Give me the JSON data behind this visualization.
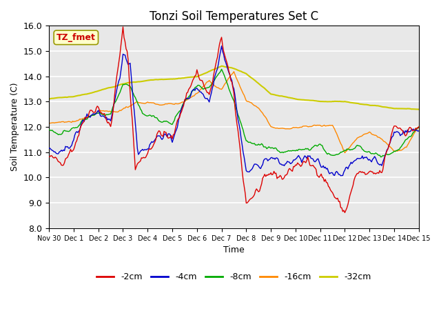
{
  "title": "Tonzi Soil Temperatures Set C",
  "xlabel": "Time",
  "ylabel": "Soil Temperature (C)",
  "ylim": [
    8.0,
    16.0
  ],
  "yticks": [
    8.0,
    9.0,
    10.0,
    11.0,
    12.0,
    13.0,
    14.0,
    15.0,
    16.0
  ],
  "xtick_labels": [
    "Nov 30",
    "Dec 1",
    "Dec 2",
    "Dec 3",
    "Dec 4",
    "Dec 5",
    "Dec 6",
    "Dec 7",
    "Dec 8",
    "Dec 9",
    "Dec 10",
    "Dec 11",
    "Dec 12",
    "Dec 13",
    "Dec 14",
    "Dec 15"
  ],
  "series_colors": [
    "#dd0000",
    "#0000cc",
    "#00aa00",
    "#ff8800",
    "#cccc00"
  ],
  "series_labels": [
    "-2cm",
    "-4cm",
    "-8cm",
    "-16cm",
    "-32cm"
  ],
  "legend_label": "TZ_fmet",
  "background_color": "#e8e8e8",
  "n_points": 361,
  "xp_2cm": [
    0,
    0.5,
    1,
    1.5,
    2,
    2.5,
    3,
    3.2,
    3.5,
    4,
    4.5,
    5,
    5.5,
    6,
    6.5,
    7,
    7.5,
    8,
    8.5,
    9,
    9.5,
    10,
    10.5,
    11,
    11.5,
    12,
    12.5,
    13,
    13.5,
    14,
    14.5,
    15
  ],
  "yp_2cm": [
    10.8,
    10.6,
    11.2,
    12.5,
    12.8,
    12.0,
    15.8,
    14.8,
    10.4,
    11.0,
    11.8,
    11.5,
    13.1,
    14.2,
    13.2,
    15.5,
    13.2,
    9.0,
    9.5,
    10.2,
    10.0,
    10.5,
    10.6,
    10.2,
    9.4,
    8.6,
    10.2,
    10.1,
    10.2,
    12.1,
    11.8,
    12.0
  ],
  "xp_4cm": [
    0,
    0.5,
    1,
    1.5,
    2,
    2.5,
    3,
    3.3,
    3.6,
    4,
    4.5,
    5,
    5.5,
    6,
    6.5,
    7,
    7.5,
    8,
    8.5,
    9,
    9.5,
    10,
    10.5,
    11,
    11.5,
    12,
    12.5,
    13,
    13.5,
    14,
    14.5,
    15
  ],
  "yp_4cm": [
    11.1,
    10.9,
    11.5,
    12.4,
    12.6,
    12.1,
    14.8,
    14.5,
    11.0,
    11.2,
    11.7,
    11.5,
    13.0,
    13.6,
    13.0,
    15.2,
    13.5,
    10.2,
    10.5,
    10.8,
    10.5,
    10.7,
    10.8,
    10.5,
    10.2,
    10.2,
    10.8,
    10.8,
    10.5,
    11.8,
    11.8,
    11.9
  ],
  "xp_8cm": [
    0,
    0.5,
    1,
    1.5,
    2,
    2.5,
    3,
    3.3,
    3.8,
    4,
    4.5,
    5,
    5.5,
    6,
    6.5,
    7,
    7.5,
    8,
    8.5,
    9,
    9.5,
    10,
    10.5,
    11,
    11.5,
    12,
    12.5,
    13,
    13.5,
    14,
    14.5,
    15
  ],
  "yp_8cm": [
    11.9,
    11.7,
    12.0,
    12.3,
    12.5,
    12.5,
    13.7,
    13.6,
    12.5,
    12.4,
    12.3,
    12.1,
    13.0,
    13.6,
    13.5,
    14.2,
    13.0,
    11.4,
    11.3,
    11.2,
    11.0,
    11.0,
    11.2,
    11.3,
    10.8,
    11.0,
    11.2,
    11.0,
    10.8,
    11.0,
    11.5,
    12.0
  ],
  "xp_16cm": [
    0,
    0.5,
    1,
    1.5,
    2,
    2.5,
    3,
    3.5,
    4,
    4.5,
    5,
    5.5,
    6,
    6.5,
    7,
    7.5,
    8,
    8.5,
    9,
    9.5,
    10,
    10.5,
    11,
    11.5,
    12,
    12.5,
    13,
    13.5,
    14,
    14.5,
    15
  ],
  "yp_16cm": [
    12.1,
    12.2,
    12.2,
    12.3,
    12.6,
    12.6,
    12.7,
    12.9,
    13.0,
    12.9,
    12.9,
    13.0,
    13.3,
    13.8,
    13.5,
    14.2,
    13.0,
    12.8,
    12.0,
    11.9,
    12.0,
    12.0,
    12.1,
    12.1,
    11.0,
    11.5,
    11.8,
    11.5,
    11.0,
    11.2,
    12.0
  ],
  "xp_32cm": [
    0,
    1,
    2,
    3,
    4,
    5,
    6,
    6.5,
    7,
    7.5,
    8,
    9,
    10,
    11,
    12,
    13,
    14,
    15
  ],
  "yp_32cm": [
    13.1,
    13.2,
    13.4,
    13.7,
    13.85,
    13.9,
    14.0,
    14.2,
    14.4,
    14.3,
    14.1,
    13.3,
    13.1,
    13.0,
    13.0,
    12.85,
    12.75,
    12.7
  ]
}
